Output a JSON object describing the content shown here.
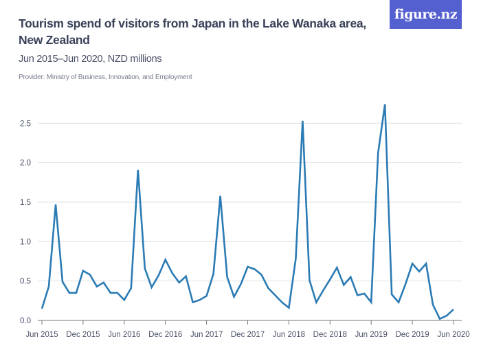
{
  "header": {
    "title": "Tourism spend of visitors from Japan in the Lake Wanaka area, New Zealand",
    "subtitle": "Jun 2015–Jun 2020, NZD millions",
    "provider": "Provider: Ministry of Business, Innovation, and Employment",
    "logo": "figure.nz"
  },
  "colors": {
    "line": "#2b7bb4",
    "logo_bg": "#5560d0",
    "grid": "#e1e2e6"
  },
  "chart_data": {
    "type": "line",
    "title": "Tourism spend of visitors from Japan in the Lake Wanaka area, New Zealand",
    "subtitle": "Jun 2015–Jun 2020, NZD millions",
    "xlabel": "",
    "ylabel": "",
    "ylim": [
      0,
      2.75
    ],
    "grid": true,
    "y_ticks": [
      "0.0",
      "0.5",
      "1.0",
      "1.5",
      "2.0",
      "2.5"
    ],
    "x_ticks": [
      "Jun 2015",
      "Dec 2015",
      "Jun 2016",
      "Dec 2016",
      "Jun 2017",
      "Dec 2017",
      "Jun 2018",
      "Dec 2018",
      "Jun 2019",
      "Dec 2019",
      "Jun 2020"
    ],
    "x_start": "Jun 2015",
    "x_end": "Jun 2020",
    "frequency": "monthly",
    "values": [
      0.15,
      0.43,
      1.47,
      0.49,
      0.35,
      0.35,
      0.63,
      0.58,
      0.43,
      0.48,
      0.35,
      0.35,
      0.26,
      0.41,
      1.91,
      0.66,
      0.42,
      0.57,
      0.77,
      0.6,
      0.48,
      0.56,
      0.23,
      0.26,
      0.31,
      0.59,
      1.58,
      0.55,
      0.3,
      0.46,
      0.68,
      0.65,
      0.58,
      0.41,
      0.32,
      0.23,
      0.16,
      0.78,
      2.53,
      0.51,
      0.23,
      0.38,
      0.52,
      0.67,
      0.45,
      0.55,
      0.32,
      0.34,
      0.23,
      2.12,
      2.74,
      0.33,
      0.23,
      0.46,
      0.72,
      0.62,
      0.72,
      0.2,
      0.02,
      0.06,
      0.14
    ]
  }
}
